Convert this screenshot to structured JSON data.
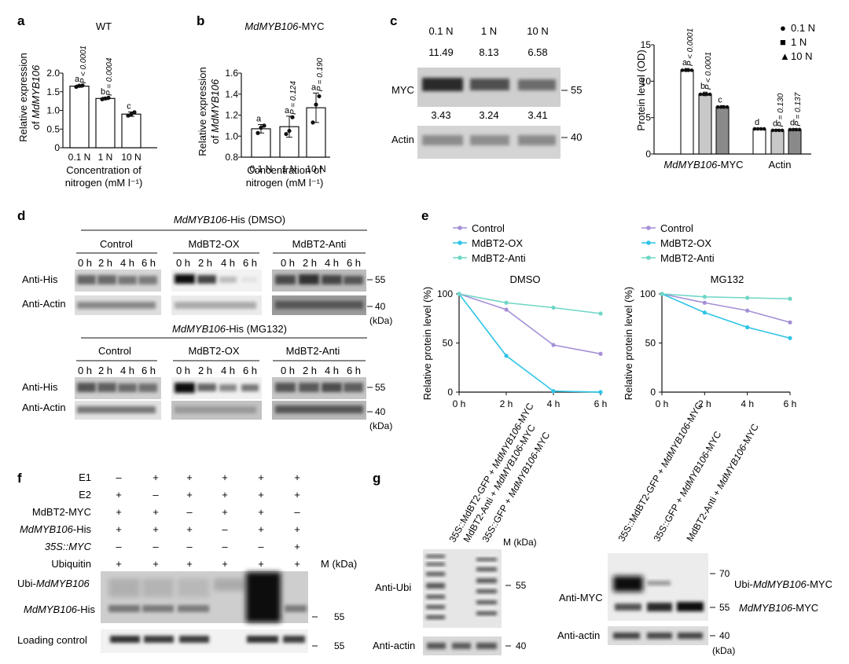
{
  "panel_labels": {
    "a": "a",
    "b": "b",
    "c": "c",
    "d": "d",
    "e": "e",
    "f": "f",
    "g": "g"
  },
  "chart_data": [
    {
      "id": "a",
      "type": "bar",
      "title": "WT",
      "categories": [
        "0.1 N",
        "1 N",
        "10 N"
      ],
      "values": [
        1.65,
        1.32,
        0.9
      ],
      "errors": [
        0.03,
        0.03,
        0.06
      ],
      "points": [
        [
          1.63,
          1.66,
          1.67
        ],
        [
          1.3,
          1.32,
          1.34
        ],
        [
          0.86,
          0.9,
          0.95
        ]
      ],
      "letters": [
        "a",
        "b",
        "c"
      ],
      "pvalues": [
        "P < 0.0001",
        "P = 0.0004",
        ""
      ],
      "ylabel_line1": "Relative expression",
      "ylabel_line2_prefix": "of ",
      "ylabel_gene": "MdMYB106",
      "xlabel_line1": "Concentration of",
      "xlabel_line2": "nitrogen (mM l⁻¹)",
      "ylim": [
        0,
        2.0
      ],
      "yticks": [
        "0",
        "0.5",
        "1.0",
        "1.5",
        "2.0"
      ],
      "ytick_values": [
        0,
        0.5,
        1.0,
        1.5,
        2.0
      ]
    },
    {
      "id": "b",
      "type": "bar",
      "title_gene": "MdMYB106",
      "title_suffix": "-MYC",
      "categories": [
        "0.1 N",
        "1 N",
        "10 N"
      ],
      "values": [
        1.07,
        1.09,
        1.27
      ],
      "errors": [
        0.04,
        0.1,
        0.14
      ],
      "points": [
        [
          1.03,
          1.08,
          1.1
        ],
        [
          1.02,
          1.05,
          1.18
        ],
        [
          1.13,
          1.3,
          1.38
        ]
      ],
      "letters": [
        "a",
        "a",
        "a"
      ],
      "pvalues": [
        "",
        "P = 0.124",
        "P = 0.190"
      ],
      "ylabel_line1": "Relative expression",
      "ylabel_line2_prefix": "of ",
      "ylabel_gene": "MdMYB106",
      "xlabel_line1": "Concentration of",
      "xlabel_line2": "nitrogen (mM l⁻¹)",
      "ylim": [
        0.8,
        1.6
      ],
      "yticks": [
        "0.8",
        "1.0",
        "1.2",
        "1.4",
        "1.6"
      ],
      "ytick_values": [
        0.8,
        1.0,
        1.2,
        1.4,
        1.6
      ]
    },
    {
      "id": "c",
      "type": "bar",
      "group_labels": [
        "MdMYB106",
        "Actin"
      ],
      "group_label_suffix": "-MYC",
      "series": [
        {
          "name": "0.1 N",
          "fill": "#ffffff",
          "values": [
            11.5,
            3.45
          ],
          "errors": [
            0.25,
            0.1
          ],
          "letters": [
            "a",
            "d"
          ],
          "pvalues": [
            "P < 0.0001",
            ""
          ]
        },
        {
          "name": "1 N",
          "fill": "#c8c8c8",
          "values": [
            8.2,
            3.25
          ],
          "errors": [
            0.3,
            0.15
          ],
          "letters": [
            "b",
            "d"
          ],
          "pvalues": [
            "P < 0.0001",
            "P = 0.130"
          ]
        },
        {
          "name": "10 N",
          "fill": "#8a8a8a",
          "values": [
            6.45,
            3.35
          ],
          "errors": [
            0.2,
            0.15
          ],
          "letters": [
            "c",
            "d"
          ],
          "pvalues": [
            "",
            "P = 0.137"
          ]
        }
      ],
      "legend_symbols": [
        "●",
        "■",
        "▲"
      ],
      "ylabel": "Protein level (OD)",
      "ylim": [
        0,
        15
      ],
      "yticks": [
        "0",
        "5",
        "10",
        "15"
      ],
      "ytick_values": [
        0,
        5,
        10,
        15
      ]
    },
    {
      "id": "e1",
      "type": "line",
      "title": "DMSO",
      "x": [
        "0 h",
        "2 h",
        "4 h",
        "6 h"
      ],
      "series": [
        {
          "name": "Control",
          "color": "#a48fd6",
          "values": [
            100,
            84,
            48,
            39
          ]
        },
        {
          "name": "MdBT2-OX",
          "color": "#2ec4e6",
          "values": [
            100,
            37,
            1,
            0
          ]
        },
        {
          "name": "MdBT2-Anti",
          "color": "#6fd6c6",
          "values": [
            100,
            91,
            86,
            80
          ]
        }
      ],
      "ylabel": "Relative protein level (%)",
      "ylim": [
        0,
        100
      ],
      "yticks": [
        "0",
        "50",
        "100"
      ],
      "ytick_values": [
        0,
        50,
        100
      ]
    },
    {
      "id": "e2",
      "type": "line",
      "title": "MG132",
      "x": [
        "0 h",
        "2 h",
        "4 h",
        "6 h"
      ],
      "series": [
        {
          "name": "Control",
          "color": "#a48fd6",
          "values": [
            100,
            91,
            83,
            71
          ]
        },
        {
          "name": "MdBT2-OX",
          "color": "#2ec4e6",
          "values": [
            100,
            81,
            66,
            55
          ]
        },
        {
          "name": "MdBT2-Anti",
          "color": "#6fd6c6",
          "values": [
            100,
            97,
            96,
            95
          ]
        }
      ],
      "ylabel": "Relative protein level (%)",
      "ylim": [
        0,
        100
      ],
      "yticks": [
        "0",
        "50",
        "100"
      ],
      "ytick_values": [
        0,
        50,
        100
      ]
    }
  ],
  "panel_c_blot": {
    "lanes": [
      "0.1 N",
      "1 N",
      "10 N"
    ],
    "myc_values": [
      "11.49",
      "8.13",
      "6.58"
    ],
    "actin_values": [
      "3.43",
      "3.24",
      "3.41"
    ],
    "row_labels": [
      "MYC",
      "Actin"
    ],
    "markers": [
      "55",
      "40"
    ]
  },
  "panel_d_blot": {
    "top_title_gene": "MdMYB106",
    "top_title_suffix": "-His (DMSO)",
    "bottom_title_gene": "MdMYB106",
    "bottom_title_suffix": "-His (MG132)",
    "groups": [
      "Control",
      "MdBT2-OX",
      "MdBT2-Anti"
    ],
    "times": [
      "0 h",
      "2 h",
      "4 h",
      "6 h"
    ],
    "row_labels": [
      "Anti-His",
      "Anti-Actin"
    ],
    "markers": [
      "55",
      "40"
    ],
    "unit": "(kDa)"
  },
  "panel_f": {
    "rows": [
      {
        "label": "E1",
        "italic": false,
        "signs": [
          "–",
          "+",
          "+",
          "+",
          "+",
          "+"
        ]
      },
      {
        "label": "E2",
        "italic": false,
        "signs": [
          "+",
          "–",
          "+",
          "+",
          "+",
          "+"
        ]
      },
      {
        "label": "MdBT2-MYC",
        "italic": false,
        "signs": [
          "+",
          "+",
          "–",
          "+",
          "+",
          "–"
        ]
      },
      {
        "label": "MdMYB106-His",
        "gene": "MdMYB106",
        "suffix": "-His",
        "signs": [
          "+",
          "+",
          "+",
          "–",
          "+",
          "+"
        ]
      },
      {
        "label": "35S::MYC",
        "italic": true,
        "signs": [
          "–",
          "–",
          "–",
          "–",
          "–",
          "+"
        ]
      },
      {
        "label": "Ubiquitin",
        "italic": false,
        "signs": [
          "+",
          "+",
          "+",
          "+",
          "+",
          "+"
        ]
      }
    ],
    "marker_unit": "M (kDa)",
    "ubi_label_prefix": "Ubi-",
    "ubi_label_gene": "MdMYB106",
    "his_label_gene": "MdMYB106",
    "his_label_suffix": "-His",
    "loading_label": "Loading control",
    "markers": [
      "55",
      "55"
    ]
  },
  "panel_g": {
    "left_lanes": [
      {
        "prefix": "35S::MdBT2-GFP + ",
        "gene": "MdMYB106",
        "suffix": "-MYC"
      },
      {
        "prefix": "MdBT2-Anti + ",
        "gene": "MdMYB106",
        "suffix": "-MYC"
      },
      {
        "prefix": "35S::GFP + ",
        "gene": "MdMYB106",
        "suffix": "-MYC"
      }
    ],
    "right_lanes": [
      {
        "prefix": "35S::MdBT2-GFP + ",
        "gene": "MdMYB106",
        "suffix": "-MYC"
      },
      {
        "prefix": "35S::GFP + ",
        "gene": "MdMYB106",
        "suffix": "-MYC"
      },
      {
        "prefix": "MdBT2-Anti + ",
        "gene": "MdMYB106",
        "suffix": "-MYC"
      }
    ],
    "left_unit": "M (kDa)",
    "left_rows": [
      "Anti-Ubi",
      "Anti-actin"
    ],
    "left_markers": [
      "55",
      "40"
    ],
    "right_rows": [
      "Anti-MYC",
      "Anti-actin"
    ],
    "right_markers": [
      "70",
      "55",
      "40"
    ],
    "right_unit": "(kDa)",
    "ubi_prefix": "Ubi-",
    "ubi_gene": "MdMYB106",
    "ubi_suffix": "-MYC",
    "myc_gene": "MdMYB106",
    "myc_suffix": "-MYC"
  }
}
